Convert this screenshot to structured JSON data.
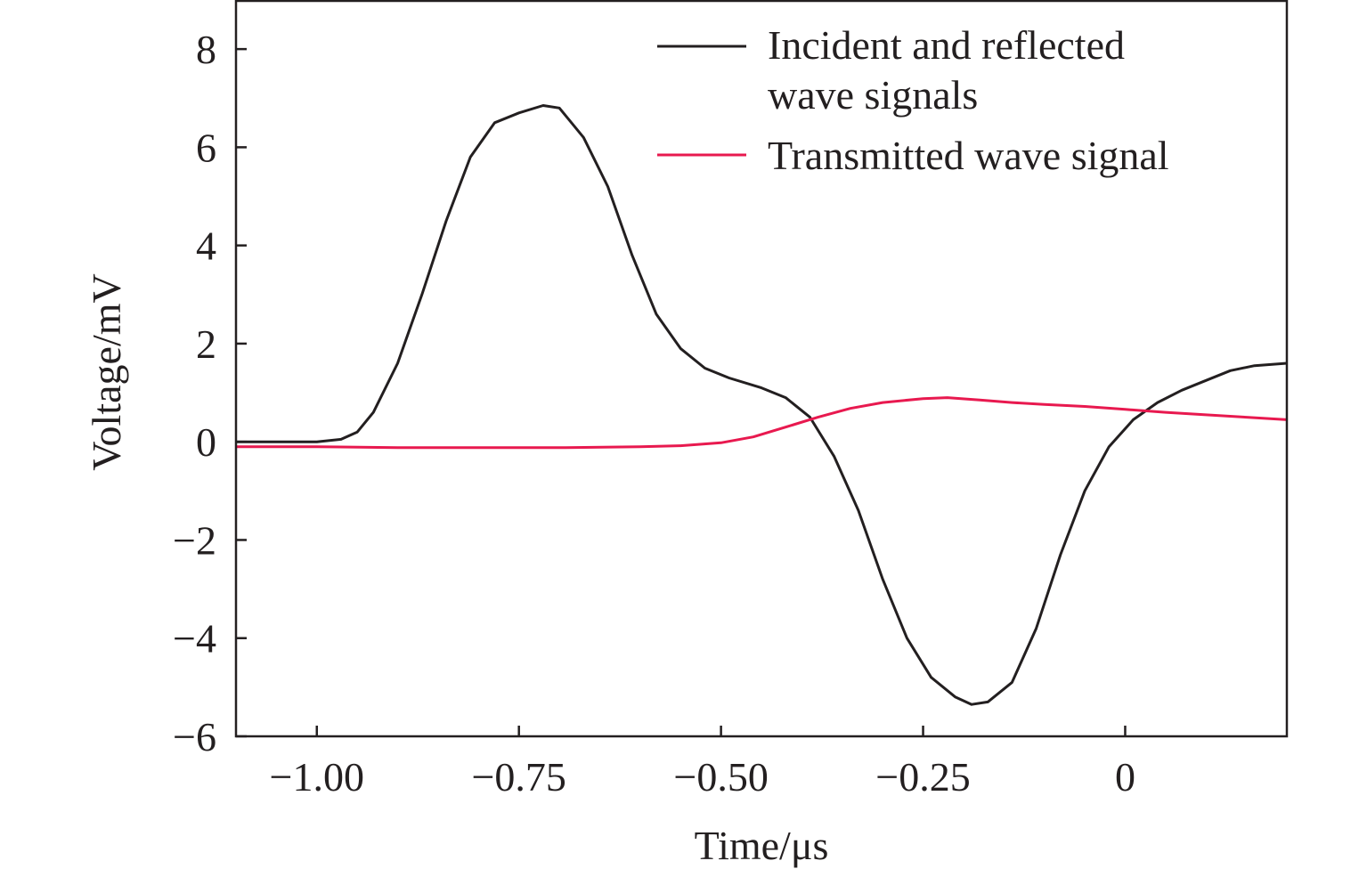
{
  "chart_data": {
    "type": "line",
    "title": "",
    "xlabel": "Time/μs",
    "ylabel": "Voltage/mV",
    "xlim": [
      -1.1,
      0.2
    ],
    "ylim": [
      -6,
      9
    ],
    "xticks": [
      -1.0,
      -0.75,
      -0.5,
      -0.25,
      0
    ],
    "xtick_labels": [
      "−1.00",
      "−0.75",
      "−0.50",
      "−0.25",
      "0"
    ],
    "yticks": [
      -6,
      -4,
      -2,
      0,
      2,
      4,
      6,
      8
    ],
    "ytick_labels": [
      "−6",
      "−4",
      "−2",
      "0",
      "2",
      "4",
      "6",
      "8"
    ],
    "grid": false,
    "legend_position": "top-right",
    "legend_labels": [
      "Incident and reflected",
      "wave signals"
    ],
    "series": [
      {
        "name": "Incident and reflected wave signals",
        "color": "#231f20",
        "points": [
          [
            -1.1,
            0.0
          ],
          [
            -1.05,
            0.0
          ],
          [
            -1.0,
            0.0
          ],
          [
            -0.97,
            0.05
          ],
          [
            -0.95,
            0.2
          ],
          [
            -0.93,
            0.6
          ],
          [
            -0.9,
            1.6
          ],
          [
            -0.87,
            3.0
          ],
          [
            -0.84,
            4.5
          ],
          [
            -0.81,
            5.8
          ],
          [
            -0.78,
            6.5
          ],
          [
            -0.75,
            6.7
          ],
          [
            -0.72,
            6.85
          ],
          [
            -0.7,
            6.8
          ],
          [
            -0.67,
            6.2
          ],
          [
            -0.64,
            5.2
          ],
          [
            -0.61,
            3.8
          ],
          [
            -0.58,
            2.6
          ],
          [
            -0.55,
            1.9
          ],
          [
            -0.52,
            1.5
          ],
          [
            -0.49,
            1.3
          ],
          [
            -0.45,
            1.1
          ],
          [
            -0.42,
            0.9
          ],
          [
            -0.39,
            0.5
          ],
          [
            -0.36,
            -0.3
          ],
          [
            -0.33,
            -1.4
          ],
          [
            -0.3,
            -2.8
          ],
          [
            -0.27,
            -4.0
          ],
          [
            -0.24,
            -4.8
          ],
          [
            -0.21,
            -5.2
          ],
          [
            -0.19,
            -5.35
          ],
          [
            -0.17,
            -5.3
          ],
          [
            -0.14,
            -4.9
          ],
          [
            -0.11,
            -3.8
          ],
          [
            -0.08,
            -2.3
          ],
          [
            -0.05,
            -1.0
          ],
          [
            -0.02,
            -0.1
          ],
          [
            0.01,
            0.45
          ],
          [
            0.04,
            0.8
          ],
          [
            0.07,
            1.05
          ],
          [
            0.1,
            1.25
          ],
          [
            0.13,
            1.45
          ],
          [
            0.16,
            1.55
          ],
          [
            0.2,
            1.6
          ]
        ]
      },
      {
        "name": "Transmitted wave signal",
        "color": "#e8194f",
        "points": [
          [
            -1.1,
            -0.1
          ],
          [
            -1.0,
            -0.1
          ],
          [
            -0.9,
            -0.12
          ],
          [
            -0.8,
            -0.12
          ],
          [
            -0.7,
            -0.12
          ],
          [
            -0.6,
            -0.1
          ],
          [
            -0.55,
            -0.08
          ],
          [
            -0.5,
            -0.02
          ],
          [
            -0.46,
            0.1
          ],
          [
            -0.42,
            0.3
          ],
          [
            -0.38,
            0.5
          ],
          [
            -0.34,
            0.68
          ],
          [
            -0.3,
            0.8
          ],
          [
            -0.25,
            0.88
          ],
          [
            -0.22,
            0.9
          ],
          [
            -0.18,
            0.85
          ],
          [
            -0.14,
            0.8
          ],
          [
            -0.1,
            0.76
          ],
          [
            -0.05,
            0.72
          ],
          [
            0.0,
            0.66
          ],
          [
            0.05,
            0.6
          ],
          [
            0.1,
            0.55
          ],
          [
            0.15,
            0.5
          ],
          [
            0.2,
            0.45
          ]
        ]
      }
    ]
  }
}
